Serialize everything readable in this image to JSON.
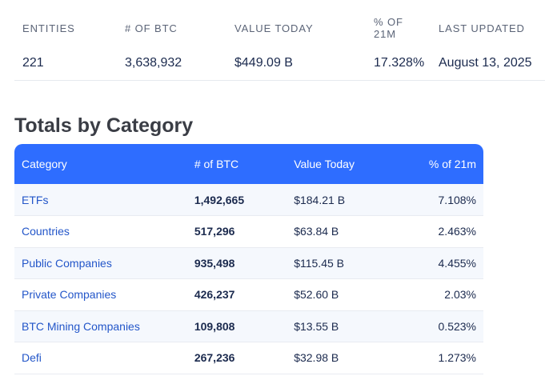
{
  "summary": {
    "headers": {
      "entities": "ENTITIES",
      "btc": "# OF BTC",
      "value": "VALUE TODAY",
      "pct": "% OF 21M",
      "updated": "LAST UPDATED"
    },
    "values": {
      "entities": "221",
      "btc": "3,638,932",
      "value": "$449.09 B",
      "pct": "17.328%",
      "updated": "August 13, 2025"
    }
  },
  "section_title": "Totals by Category",
  "table": {
    "columns": [
      "Category",
      "# of BTC",
      "Value Today",
      "% of 21m"
    ],
    "rows": [
      {
        "category": "ETFs",
        "btc": "1,492,665",
        "value": "$184.21 B",
        "pct": "7.108%"
      },
      {
        "category": "Countries",
        "btc": "517,296",
        "value": "$63.84 B",
        "pct": "2.463%"
      },
      {
        "category": "Public Companies",
        "btc": "935,498",
        "value": "$115.45 B",
        "pct": "4.455%"
      },
      {
        "category": "Private Companies",
        "btc": "426,237",
        "value": "$52.60 B",
        "pct": "2.03%"
      },
      {
        "category": "BTC Mining Companies",
        "btc": "109,808",
        "value": "$13.55 B",
        "pct": "0.523%"
      },
      {
        "category": "Defi",
        "btc": "267,236",
        "value": "$32.98 B",
        "pct": "1.273%"
      }
    ]
  },
  "colors": {
    "header_bg": "#2e6dff",
    "link": "#2356c9",
    "text": "#1b2a4e"
  }
}
